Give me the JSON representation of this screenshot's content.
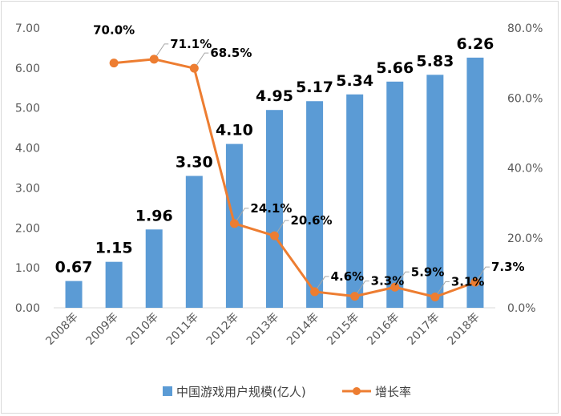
{
  "chart_data": {
    "type": "bar+line",
    "categories": [
      "2008年",
      "2009年",
      "2010年",
      "2011年",
      "2012年",
      "2013年",
      "2014年",
      "2015年",
      "2016年",
      "2017年",
      "2018年"
    ],
    "series": [
      {
        "name": "中国游戏用户规模(亿人)",
        "type": "bar",
        "axis": "left",
        "values": [
          0.67,
          1.15,
          1.96,
          3.3,
          4.1,
          4.95,
          5.17,
          5.34,
          5.66,
          5.83,
          6.26
        ],
        "labels": [
          "0.67",
          "1.15",
          "1.96",
          "3.30",
          "4.10",
          "4.95",
          "5.17",
          "5.34",
          "5.66",
          "5.83",
          "6.26"
        ],
        "color": "#5b9bd5"
      },
      {
        "name": "增长率",
        "type": "line",
        "axis": "right",
        "values": [
          null,
          70.0,
          71.1,
          68.5,
          24.1,
          20.6,
          4.6,
          3.3,
          5.9,
          3.1,
          7.3
        ],
        "labels": [
          "",
          "70.0%",
          "71.1%",
          "68.5%",
          "24.1%",
          "20.6%",
          "4.6%",
          "3.3%",
          "5.9%",
          "3.1%",
          "7.3%"
        ],
        "color": "#ed7d31"
      }
    ],
    "y_left": {
      "min": 0,
      "max": 7,
      "ticks": [
        "0.00",
        "1.00",
        "2.00",
        "3.00",
        "4.00",
        "5.00",
        "6.00",
        "7.00"
      ]
    },
    "y_right": {
      "min": 0,
      "max": 80,
      "ticks": [
        "0.0%",
        "20.0%",
        "40.0%",
        "60.0%",
        "80.0%"
      ]
    },
    "grid": false,
    "legend_position": "bottom"
  }
}
